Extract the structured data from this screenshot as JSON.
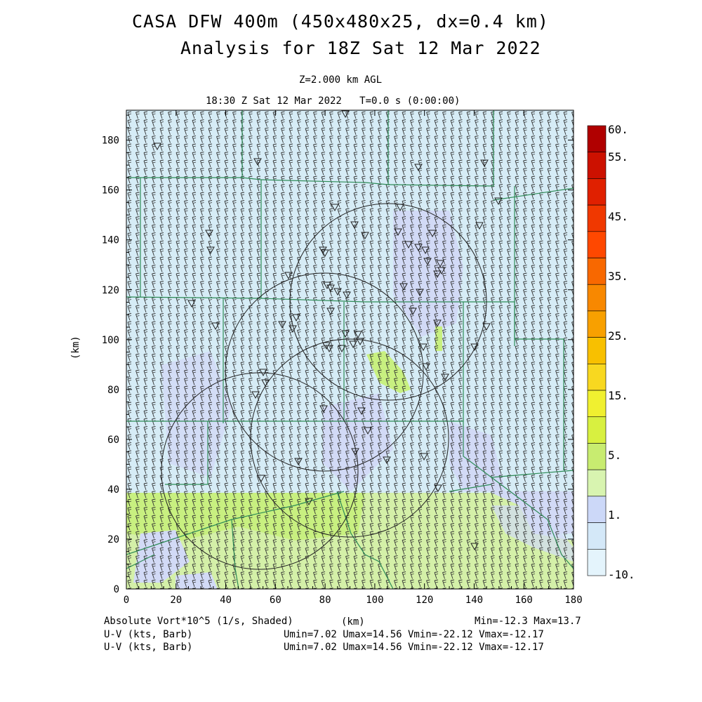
{
  "title_line1": "CASA DFW 400m (450x480x25, dx=0.4 km)",
  "title_line2": "Analysis for 18Z Sat 12 Mar 2022",
  "level": "Z=2.000 km AGL",
  "valid_time": "18:30 Z Sat 12 Mar 2022   T=0.0 s (0:00:00)",
  "axes": {
    "x_label": "(km)",
    "y_label": "(km)",
    "x_ticks": [
      "0",
      "20",
      "40",
      "60",
      "80",
      "100",
      "120",
      "140",
      "160",
      "180"
    ],
    "y_ticks": [
      "0",
      "20",
      "40",
      "60",
      "80",
      "100",
      "120",
      "140",
      "160",
      "180"
    ],
    "x_range": [
      0,
      180
    ],
    "y_range": [
      0,
      192
    ]
  },
  "colorbar": {
    "labels": [
      "60.",
      "55.",
      "45.",
      "35.",
      "25.",
      "15.",
      "5.",
      "1.",
      "-10."
    ],
    "colors": [
      "#b00000",
      "#cc1100",
      "#e02000",
      "#f03800",
      "#ff4800",
      "#f86800",
      "#f88800",
      "#f8a000",
      "#f8c000",
      "#f8d820",
      "#f0f030",
      "#d8f040",
      "#c8ec70",
      "#d8f4b0",
      "#ccd8f8",
      "#d4e8f8",
      "#e4f4fc"
    ]
  },
  "field_colors": {
    "light_blue": "#d6ecf6",
    "lavender": "#d2daf6",
    "light_green": "#d4f0a8",
    "yellow_green": "#c8f080",
    "boundary_green": "#2e8b57"
  },
  "footer": {
    "left1": "Absolute Vort*10^5 (1/s, Shaded)",
    "center1": "(km)",
    "right1": "Min=-12.3 Max=13.7",
    "left2": "U-V (kts, Barb)",
    "right2": "Umin=7.02 Umax=14.56 Vmin=-22.12 Vmax=-12.17",
    "left3": "U-V (kts, Barb)",
    "right3": "Umin=7.02 Umax=14.56 Vmin=-22.12 Vmax=-12.17"
  }
}
